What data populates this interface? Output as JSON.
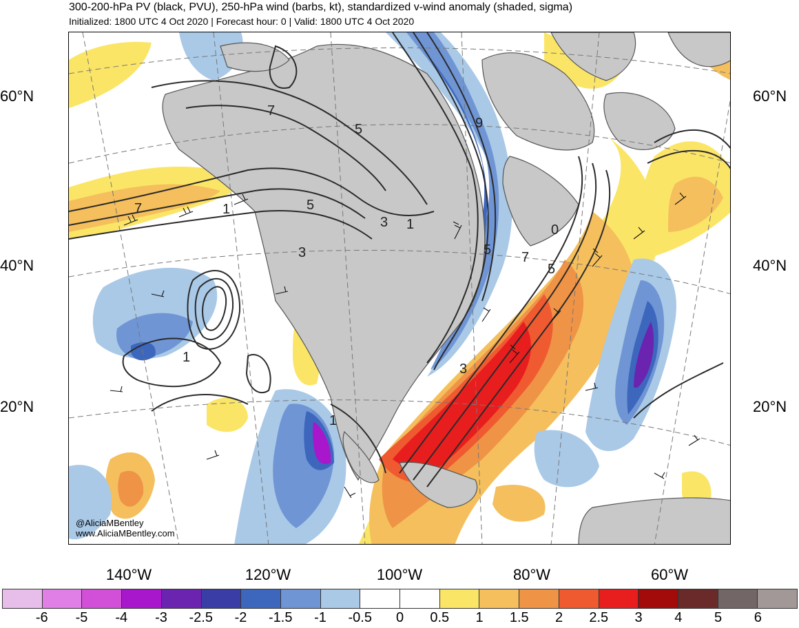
{
  "header": {
    "title": "300-200-hPa PV (black, PVU), 250-hPa wind (barbs, kt), standardized v-wind anomaly (shaded, sigma)",
    "subtitle": "Initialized: 1800 UTC 4 Oct 2020 | Forecast hour: 0 | Valid: 1800 UTC 4 Oct 2020"
  },
  "map": {
    "lat_labels": [
      "60°N",
      "40°N",
      "20°N"
    ],
    "lon_labels": [
      "140°W",
      "120°W",
      "100°W",
      "80°W",
      "60°W"
    ],
    "contour_labels": [
      "7",
      "5",
      "7",
      "5",
      "1",
      "3",
      "3",
      "1",
      "5",
      "7",
      "5",
      "1",
      "3",
      "1",
      "9",
      "0"
    ],
    "credit_handle": "@AliciaMBentley",
    "credit_url": "www.AliciaMBentley.com",
    "colors": {
      "land": "#c8c8c8",
      "coast": "#555555",
      "contour": "#2a2a2a"
    }
  },
  "colorbar": {
    "colors": [
      "#e7bde9",
      "#e07fe6",
      "#d24fd8",
      "#a817cc",
      "#6a24b0",
      "#3a3da6",
      "#3d67bd",
      "#6f95d4",
      "#a9c9e7",
      "#ffffff",
      "#ffffff",
      "#fbe567",
      "#f4bf5c",
      "#ef9346",
      "#ef5a30",
      "#e81e1e",
      "#a30a0a",
      "#6b2a2a",
      "#726666",
      "#a29898"
    ],
    "tick_labels": [
      "-6",
      "-5",
      "-4",
      "-3",
      "-2.5",
      "-2",
      "-1.5",
      "-1",
      "-0.5",
      "0",
      "0.5",
      "1",
      "1.5",
      "2",
      "2.5",
      "3",
      "4",
      "5",
      "6"
    ]
  }
}
